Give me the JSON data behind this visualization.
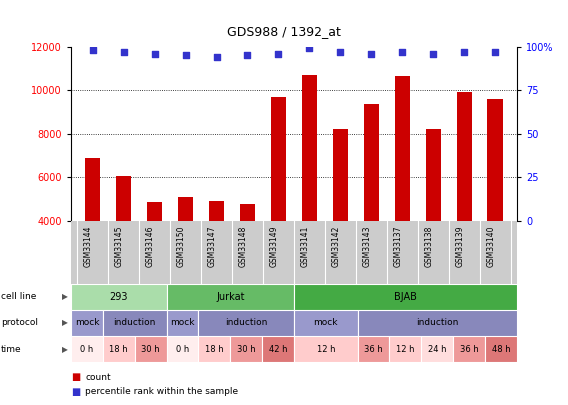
{
  "title": "GDS988 / 1392_at",
  "samples": [
    "GSM33144",
    "GSM33145",
    "GSM33146",
    "GSM33150",
    "GSM33147",
    "GSM33148",
    "GSM33149",
    "GSM33141",
    "GSM33142",
    "GSM33143",
    "GSM33137",
    "GSM33138",
    "GSM33139",
    "GSM33140"
  ],
  "counts": [
    6900,
    6050,
    4850,
    5100,
    4900,
    4750,
    9700,
    10700,
    8200,
    9350,
    10650,
    8200,
    9900,
    9600
  ],
  "percentile_ranks": [
    98,
    97,
    96,
    95,
    94,
    95,
    96,
    99,
    97,
    96,
    97,
    96,
    97,
    97
  ],
  "bar_color": "#cc0000",
  "dot_color": "#3333cc",
  "ylim_left": [
    4000,
    12000
  ],
  "ylim_right": [
    0,
    100
  ],
  "yticks_left": [
    4000,
    6000,
    8000,
    10000,
    12000
  ],
  "yticks_right": [
    0,
    25,
    50,
    75,
    100
  ],
  "cell_line_groups": [
    {
      "label": "293",
      "start": 0,
      "end": 3,
      "color": "#aaddaa"
    },
    {
      "label": "Jurkat",
      "start": 3,
      "end": 7,
      "color": "#66bb66"
    },
    {
      "label": "BJAB",
      "start": 7,
      "end": 14,
      "color": "#44aa44"
    }
  ],
  "protocol_groups": [
    {
      "label": "mock",
      "start": 0,
      "end": 1,
      "color": "#9999cc"
    },
    {
      "label": "induction",
      "start": 1,
      "end": 3,
      "color": "#8888bb"
    },
    {
      "label": "mock",
      "start": 3,
      "end": 4,
      "color": "#9999cc"
    },
    {
      "label": "induction",
      "start": 4,
      "end": 7,
      "color": "#8888bb"
    },
    {
      "label": "mock",
      "start": 7,
      "end": 9,
      "color": "#9999cc"
    },
    {
      "label": "induction",
      "start": 9,
      "end": 14,
      "color": "#8888bb"
    }
  ],
  "time_groups": [
    {
      "label": "0 h",
      "start": 0,
      "end": 1,
      "color": "#ffeeee"
    },
    {
      "label": "18 h",
      "start": 1,
      "end": 2,
      "color": "#ffcccc"
    },
    {
      "label": "30 h",
      "start": 2,
      "end": 3,
      "color": "#ee9999"
    },
    {
      "label": "0 h",
      "start": 3,
      "end": 4,
      "color": "#ffeeee"
    },
    {
      "label": "18 h",
      "start": 4,
      "end": 5,
      "color": "#ffcccc"
    },
    {
      "label": "30 h",
      "start": 5,
      "end": 6,
      "color": "#ee9999"
    },
    {
      "label": "42 h",
      "start": 6,
      "end": 7,
      "color": "#dd7777"
    },
    {
      "label": "12 h",
      "start": 7,
      "end": 9,
      "color": "#ffcccc"
    },
    {
      "label": "36 h",
      "start": 9,
      "end": 10,
      "color": "#ee9999"
    },
    {
      "label": "12 h",
      "start": 10,
      "end": 11,
      "color": "#ffcccc"
    },
    {
      "label": "24 h",
      "start": 11,
      "end": 12,
      "color": "#ffdddd"
    },
    {
      "label": "36 h",
      "start": 12,
      "end": 13,
      "color": "#ee9999"
    },
    {
      "label": "48 h",
      "start": 13,
      "end": 14,
      "color": "#dd7777"
    }
  ],
  "legend_count_label": "count",
  "legend_pct_label": "percentile rank within the sample",
  "bg_color": "#ffffff",
  "label_bg_color": "#cccccc",
  "bar_width": 0.5
}
